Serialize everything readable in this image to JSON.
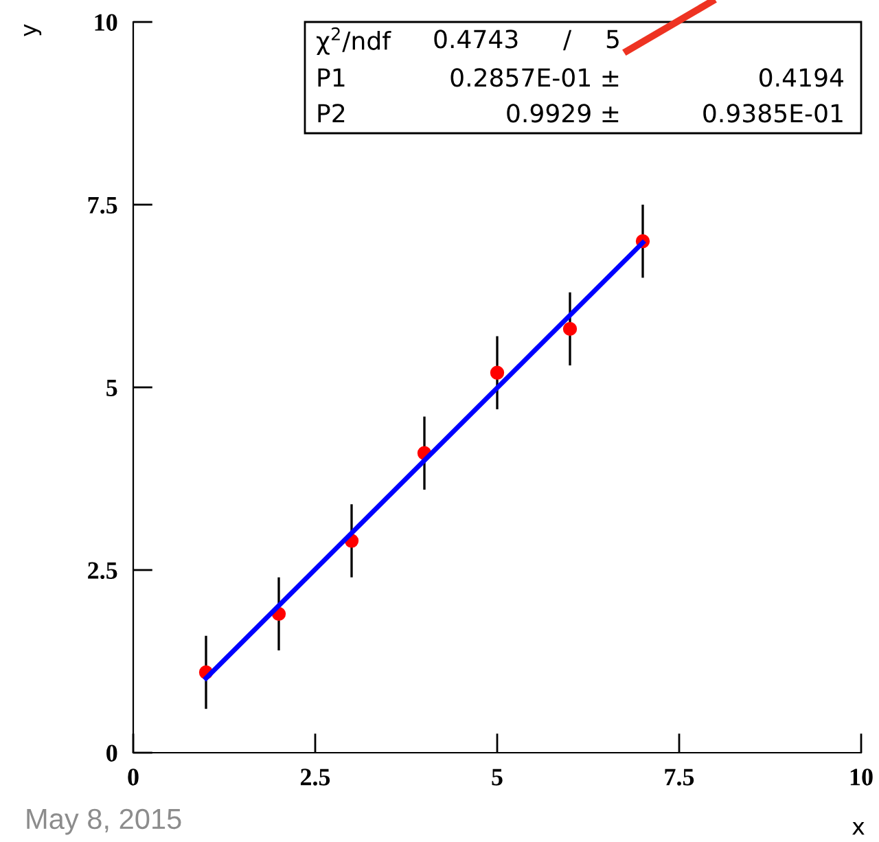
{
  "chart_data": {
    "type": "scatter",
    "xlabel": "x",
    "ylabel": "y",
    "x": [
      1,
      2,
      3,
      4,
      5,
      6,
      7
    ],
    "series": [
      {
        "color": "#ff0000",
        "values": [
          1.1,
          1.9,
          2.9,
          4.1,
          5.2,
          5.8,
          7.0
        ],
        "errors": [
          0.5,
          0.5,
          0.5,
          0.5,
          0.5,
          0.5,
          0.5
        ],
        "marker": "circle"
      },
      {
        "type": "line",
        "color": "#0000ff",
        "x": [
          1,
          7
        ],
        "values": [
          1.02,
          6.98
        ],
        "marker": "none",
        "line_style": "solid"
      }
    ],
    "xlim": [
      0,
      10
    ],
    "ylim": [
      0,
      10
    ],
    "xticks": [
      0,
      2.5,
      5,
      7.5,
      10
    ],
    "yticks": [
      0,
      2.5,
      5,
      7.5,
      10
    ],
    "grid": false,
    "annotations": [
      "χ$^{2}$/ndf",
      "0.4743",
      "/",
      "5",
      "P1",
      "0.2857E-01 ±",
      "0.4194",
      "P2",
      "0.9929 ±",
      "0.9385E-01",
      "May 8, 2015"
    ]
  }
}
